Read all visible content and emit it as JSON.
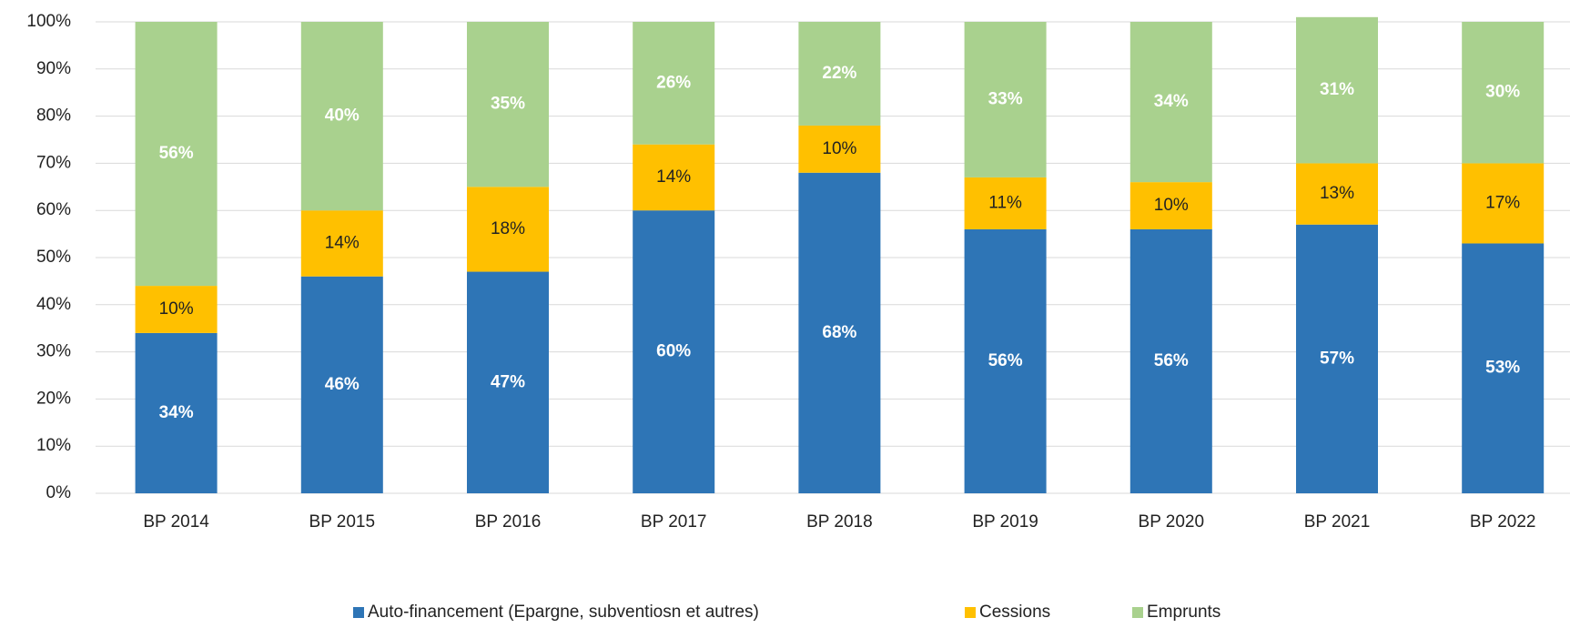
{
  "chart_data": {
    "type": "stacked_bar",
    "categories": [
      "BP 2014",
      "BP 2015",
      "BP 2016",
      "BP 2017",
      "BP 2018",
      "BP 2019",
      "BP 2020",
      "BP 2021",
      "BP 2022"
    ],
    "series": [
      {
        "name": "Auto-financement (Epargne, subventiosn et autres)",
        "color": "#2e75b6",
        "values": [
          34,
          46,
          47,
          60,
          68,
          56,
          56,
          57,
          53
        ],
        "value_labels": [
          "34%",
          "46%",
          "47%",
          "60%",
          "68%",
          "56%",
          "56%",
          "57%",
          "53%"
        ]
      },
      {
        "name": "Cessions",
        "color": "#ffc000",
        "values": [
          10,
          14,
          18,
          14,
          10,
          11,
          10,
          13,
          17
        ],
        "value_labels": [
          "10%",
          "14%",
          "18%",
          "14%",
          "10%",
          "11%",
          "10%",
          "13%",
          "17%"
        ]
      },
      {
        "name": "Emprunts",
        "color": "#a9d18e",
        "values": [
          56,
          40,
          35,
          26,
          22,
          33,
          34,
          31,
          30
        ],
        "value_labels": [
          "56%",
          "40%",
          "35%",
          "26%",
          "22%",
          "33%",
          "34%",
          "31%",
          "30%"
        ]
      }
    ],
    "ylim": [
      0,
      100
    ],
    "yticks": [
      {
        "value": 0,
        "label": "0%"
      },
      {
        "value": 10,
        "label": "10%"
      },
      {
        "value": 20,
        "label": "20%"
      },
      {
        "value": 30,
        "label": "30%"
      },
      {
        "value": 40,
        "label": "40%"
      },
      {
        "value": 50,
        "label": "50%"
      },
      {
        "value": 60,
        "label": "60%"
      },
      {
        "value": 70,
        "label": "70%"
      },
      {
        "value": 80,
        "label": "80%"
      },
      {
        "value": 90,
        "label": "90%"
      },
      {
        "value": 100,
        "label": "100%"
      }
    ],
    "grid": true,
    "legend": "bottom"
  }
}
